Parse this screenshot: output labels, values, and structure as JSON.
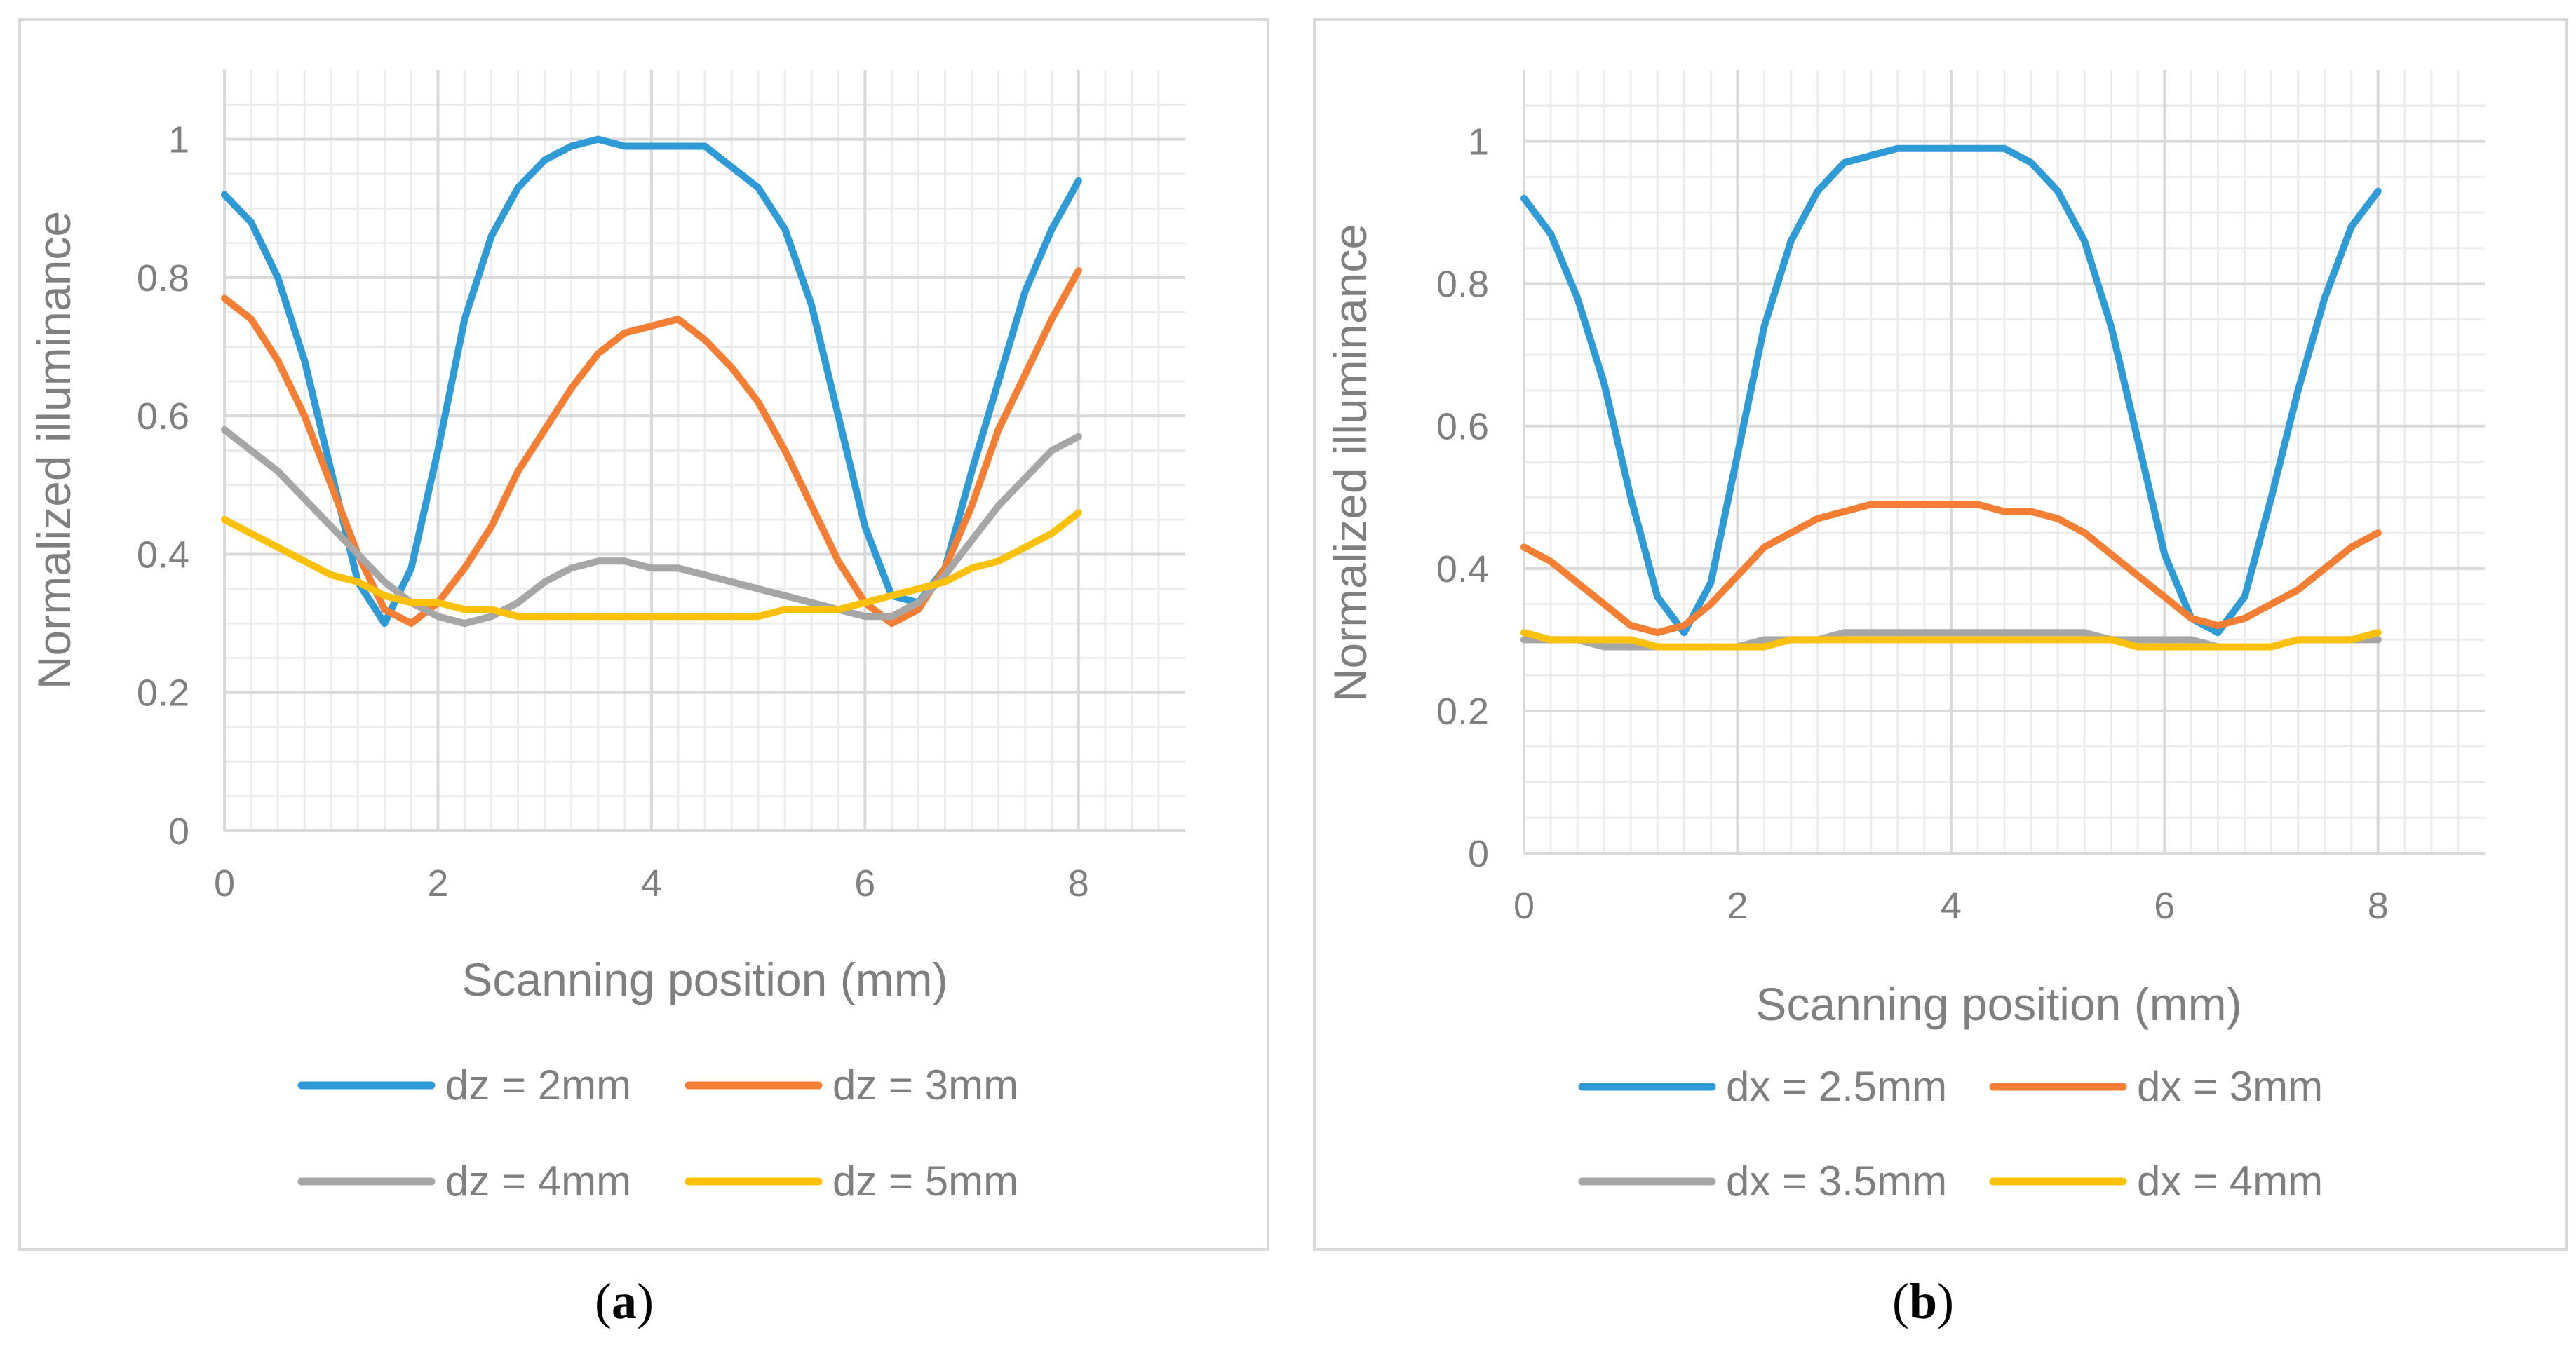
{
  "colors": {
    "blue": "#2e9ad6",
    "orange": "#f47f34",
    "gray": "#a6a6a6",
    "yellow": "#fcc007",
    "axis_text": "#7f7f7f",
    "grid": "#d9d9d9",
    "border": "#d9d9d9"
  },
  "captions": {
    "a": {
      "open": "(",
      "letter": "a",
      "close": ")"
    },
    "b": {
      "open": "(",
      "letter": "b",
      "close": ")"
    }
  },
  "chart_data": [
    {
      "type": "line",
      "panel": "a",
      "xlabel": "Scanning position (mm)",
      "ylabel": "Normalized illuminance",
      "xlim": [
        0,
        9
      ],
      "ylim": [
        0,
        1.1
      ],
      "xticks": [
        "0",
        "2",
        "4",
        "6",
        "8"
      ],
      "yticks": [
        "0",
        "0.2",
        "0.4",
        "0.6",
        "0.8",
        "1"
      ],
      "legend_position": "bottom",
      "x": [
        0,
        0.25,
        0.5,
        0.75,
        1.0,
        1.25,
        1.5,
        1.75,
        2.0,
        2.25,
        2.5,
        2.75,
        3.0,
        3.25,
        3.5,
        3.75,
        4.0,
        4.25,
        4.5,
        4.75,
        5.0,
        5.25,
        5.5,
        5.75,
        6.0,
        6.25,
        6.5,
        6.75,
        7.0,
        7.25,
        7.5,
        7.75,
        8.0
      ],
      "series": [
        {
          "name": "dz = 2mm",
          "color_key": "blue",
          "values": [
            0.92,
            0.88,
            0.8,
            0.68,
            0.52,
            0.36,
            0.3,
            0.38,
            0.55,
            0.74,
            0.86,
            0.93,
            0.97,
            0.99,
            1.0,
            0.99,
            0.99,
            0.99,
            0.99,
            0.96,
            0.93,
            0.87,
            0.76,
            0.6,
            0.44,
            0.34,
            0.33,
            0.38,
            0.52,
            0.65,
            0.78,
            0.87,
            0.94
          ]
        },
        {
          "name": "dz = 3mm",
          "color_key": "orange",
          "values": [
            0.77,
            0.74,
            0.68,
            0.6,
            0.5,
            0.4,
            0.32,
            0.3,
            0.33,
            0.38,
            0.44,
            0.52,
            0.58,
            0.64,
            0.69,
            0.72,
            0.73,
            0.74,
            0.71,
            0.67,
            0.62,
            0.55,
            0.47,
            0.39,
            0.33,
            0.3,
            0.32,
            0.38,
            0.47,
            0.58,
            0.66,
            0.74,
            0.81
          ]
        },
        {
          "name": "dz = 4mm",
          "color_key": "gray",
          "values": [
            0.58,
            0.55,
            0.52,
            0.48,
            0.44,
            0.4,
            0.36,
            0.33,
            0.31,
            0.3,
            0.31,
            0.33,
            0.36,
            0.38,
            0.39,
            0.39,
            0.38,
            0.38,
            0.37,
            0.36,
            0.35,
            0.34,
            0.33,
            0.32,
            0.31,
            0.31,
            0.33,
            0.37,
            0.42,
            0.47,
            0.51,
            0.55,
            0.57
          ]
        },
        {
          "name": "dz = 5mm",
          "color_key": "yellow",
          "values": [
            0.45,
            0.43,
            0.41,
            0.39,
            0.37,
            0.36,
            0.34,
            0.33,
            0.33,
            0.32,
            0.32,
            0.31,
            0.31,
            0.31,
            0.31,
            0.31,
            0.31,
            0.31,
            0.31,
            0.31,
            0.31,
            0.32,
            0.32,
            0.32,
            0.33,
            0.34,
            0.35,
            0.36,
            0.38,
            0.39,
            0.41,
            0.43,
            0.46
          ]
        }
      ]
    },
    {
      "type": "line",
      "panel": "b",
      "xlabel": "Scanning position (mm)",
      "ylabel": "Normalized illuminance",
      "xlim": [
        0,
        9
      ],
      "ylim": [
        0,
        1.1
      ],
      "xticks": [
        "0",
        "2",
        "4",
        "6",
        "8"
      ],
      "yticks": [
        "0",
        "0.2",
        "0.4",
        "0.6",
        "0.8",
        "1"
      ],
      "legend_position": "bottom",
      "x": [
        0,
        0.25,
        0.5,
        0.75,
        1.0,
        1.25,
        1.5,
        1.75,
        2.0,
        2.25,
        2.5,
        2.75,
        3.0,
        3.25,
        3.5,
        3.75,
        4.0,
        4.25,
        4.5,
        4.75,
        5.0,
        5.25,
        5.5,
        5.75,
        6.0,
        6.25,
        6.5,
        6.75,
        7.0,
        7.25,
        7.5,
        7.75,
        8.0
      ],
      "series": [
        {
          "name": "dx = 2.5mm",
          "color_key": "blue",
          "values": [
            0.92,
            0.87,
            0.78,
            0.66,
            0.5,
            0.36,
            0.31,
            0.38,
            0.56,
            0.74,
            0.86,
            0.93,
            0.97,
            0.98,
            0.99,
            0.99,
            0.99,
            0.99,
            0.99,
            0.97,
            0.93,
            0.86,
            0.74,
            0.58,
            0.42,
            0.33,
            0.31,
            0.36,
            0.5,
            0.65,
            0.78,
            0.88,
            0.93
          ]
        },
        {
          "name": "dx = 3mm",
          "color_key": "orange",
          "values": [
            0.43,
            0.41,
            0.38,
            0.35,
            0.32,
            0.31,
            0.32,
            0.35,
            0.39,
            0.43,
            0.45,
            0.47,
            0.48,
            0.49,
            0.49,
            0.49,
            0.49,
            0.49,
            0.48,
            0.48,
            0.47,
            0.45,
            0.42,
            0.39,
            0.36,
            0.33,
            0.32,
            0.33,
            0.35,
            0.37,
            0.4,
            0.43,
            0.45
          ]
        },
        {
          "name": "dx = 3.5mm",
          "color_key": "gray",
          "values": [
            0.3,
            0.3,
            0.3,
            0.29,
            0.29,
            0.29,
            0.29,
            0.29,
            0.29,
            0.3,
            0.3,
            0.3,
            0.31,
            0.31,
            0.31,
            0.31,
            0.31,
            0.31,
            0.31,
            0.31,
            0.31,
            0.31,
            0.3,
            0.3,
            0.3,
            0.3,
            0.29,
            0.29,
            0.29,
            0.3,
            0.3,
            0.3,
            0.3
          ]
        },
        {
          "name": "dx = 4mm",
          "color_key": "yellow",
          "values": [
            0.31,
            0.3,
            0.3,
            0.3,
            0.3,
            0.29,
            0.29,
            0.29,
            0.29,
            0.29,
            0.3,
            0.3,
            0.3,
            0.3,
            0.3,
            0.3,
            0.3,
            0.3,
            0.3,
            0.3,
            0.3,
            0.3,
            0.3,
            0.29,
            0.29,
            0.29,
            0.29,
            0.29,
            0.29,
            0.3,
            0.3,
            0.3,
            0.31
          ]
        }
      ]
    }
  ]
}
